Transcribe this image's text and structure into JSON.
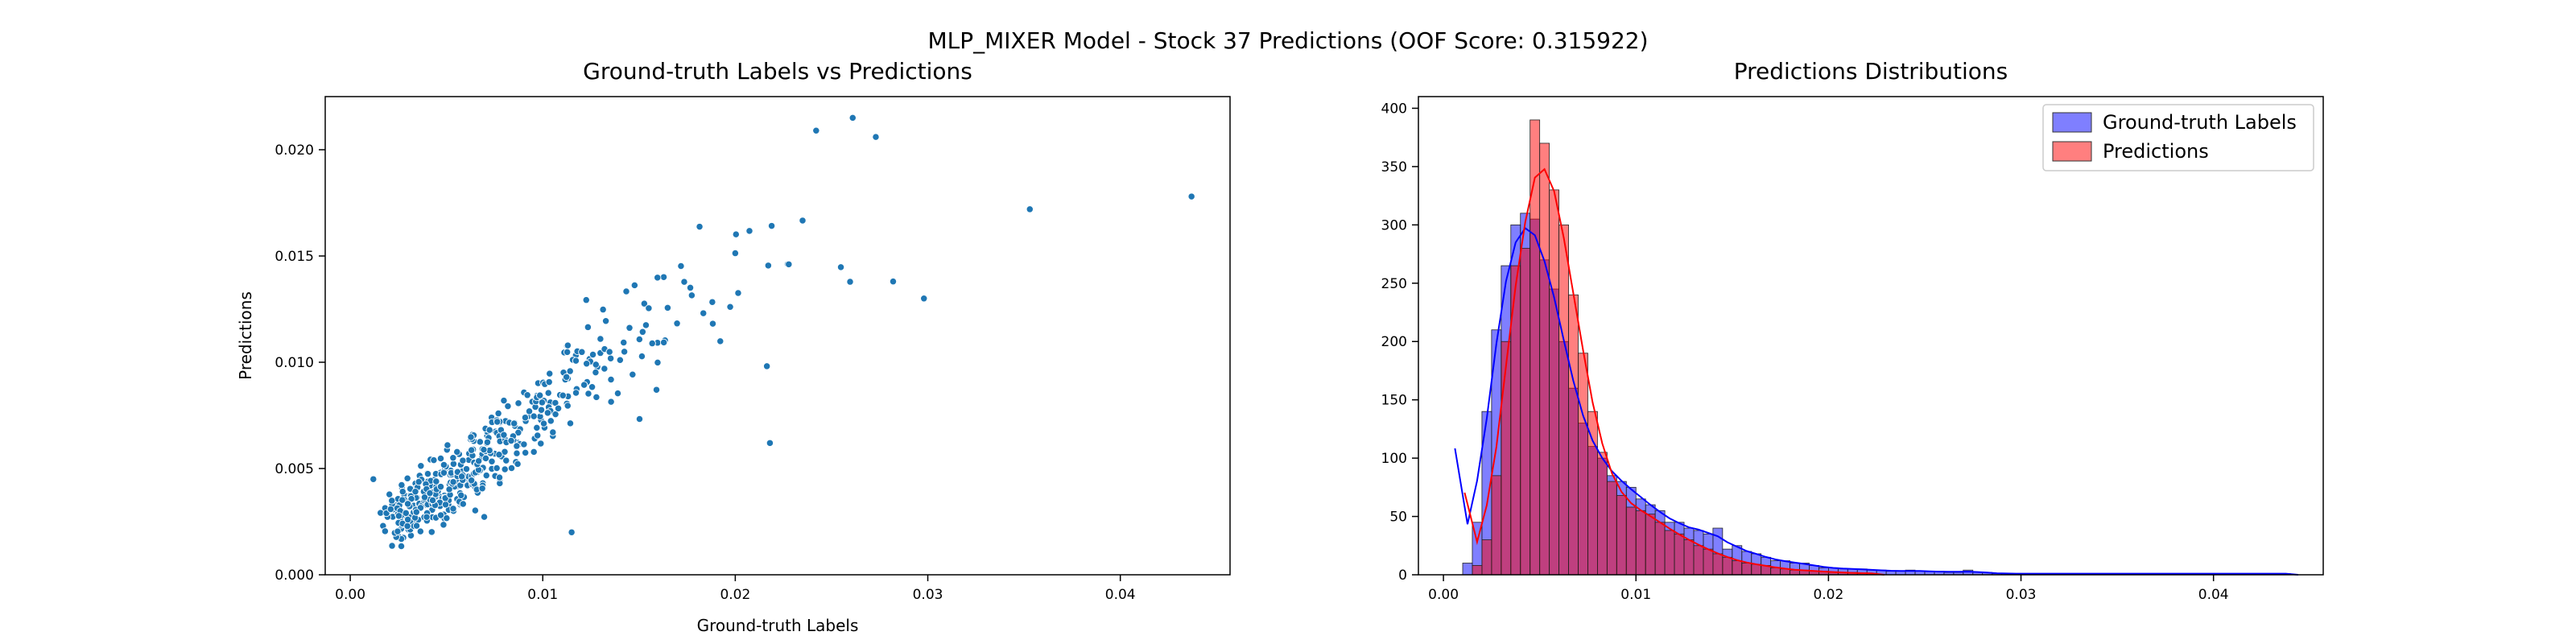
{
  "figure": {
    "title": "MLP_MIXER Model - Stock 37 Predictions (OOF Score: 0.315922)"
  },
  "chart_data": [
    {
      "type": "scatter",
      "title": "Ground-truth Labels vs Predictions",
      "xlabel": "Ground-truth Labels",
      "ylabel": "Predictions",
      "xlim": [
        -0.0013,
        0.0457
      ],
      "ylim": [
        0,
        0.0225
      ],
      "xticks": [
        "0.00",
        "0.01",
        "0.02",
        "0.03",
        "0.04"
      ],
      "yticks": [
        "0.000",
        "0.005",
        "0.010",
        "0.015",
        "0.020"
      ],
      "grid": false,
      "point_color": "#1f77b4",
      "notable_points": [
        {
          "x": 0.0437,
          "y": 0.0178
        },
        {
          "x": 0.0353,
          "y": 0.0172
        },
        {
          "x": 0.0261,
          "y": 0.0215
        },
        {
          "x": 0.0242,
          "y": 0.0209
        },
        {
          "x": 0.0273,
          "y": 0.0206
        },
        {
          "x": 0.0298,
          "y": 0.013
        },
        {
          "x": 0.0282,
          "y": 0.0138
        },
        {
          "x": 0.0218,
          "y": 0.0062
        },
        {
          "x": 0.0115,
          "y": 0.002
        },
        {
          "x": 0.0012,
          "y": 0.0045
        }
      ],
      "point_cloud": [
        {
          "x": 0.0025,
          "y": 0.0028,
          "n": 60
        },
        {
          "x": 0.0035,
          "y": 0.0033,
          "n": 60
        },
        {
          "x": 0.0045,
          "y": 0.0038,
          "n": 55
        },
        {
          "x": 0.0055,
          "y": 0.0045,
          "n": 50
        },
        {
          "x": 0.0065,
          "y": 0.0052,
          "n": 45
        },
        {
          "x": 0.0075,
          "y": 0.0058,
          "n": 40
        },
        {
          "x": 0.0085,
          "y": 0.0066,
          "n": 32
        },
        {
          "x": 0.0095,
          "y": 0.0074,
          "n": 28
        },
        {
          "x": 0.0105,
          "y": 0.0082,
          "n": 22
        },
        {
          "x": 0.0115,
          "y": 0.009,
          "n": 18
        },
        {
          "x": 0.0125,
          "y": 0.0096,
          "n": 14
        },
        {
          "x": 0.0135,
          "y": 0.0102,
          "n": 11
        },
        {
          "x": 0.0145,
          "y": 0.0108,
          "n": 9
        },
        {
          "x": 0.0155,
          "y": 0.0114,
          "n": 8
        },
        {
          "x": 0.0165,
          "y": 0.0118,
          "n": 6
        },
        {
          "x": 0.0175,
          "y": 0.0123,
          "n": 5
        },
        {
          "x": 0.0185,
          "y": 0.0128,
          "n": 4
        },
        {
          "x": 0.0195,
          "y": 0.0132,
          "n": 3
        },
        {
          "x": 0.0205,
          "y": 0.0138,
          "n": 3
        },
        {
          "x": 0.0215,
          "y": 0.0142,
          "n": 2
        },
        {
          "x": 0.0225,
          "y": 0.0145,
          "n": 2
        },
        {
          "x": 0.0235,
          "y": 0.0148,
          "n": 2
        },
        {
          "x": 0.0255,
          "y": 0.0152,
          "n": 2
        }
      ]
    },
    {
      "type": "histogram",
      "title": "Predictions Distributions",
      "xlim": [
        -0.0013,
        0.0457
      ],
      "ylim": [
        0,
        410
      ],
      "xticks": [
        "0.00",
        "0.01",
        "0.02",
        "0.03",
        "0.04"
      ],
      "yticks": [
        "0",
        "50",
        "100",
        "150",
        "200",
        "250",
        "300",
        "350",
        "400"
      ],
      "legend": "top-right",
      "bin_width": 0.0005,
      "series": [
        {
          "name": "Ground-truth Labels",
          "color": "#0000ff",
          "bin_start": 0.001,
          "counts": [
            10,
            45,
            140,
            210,
            265,
            300,
            310,
            305,
            270,
            245,
            200,
            160,
            130,
            110,
            100,
            85,
            80,
            75,
            65,
            60,
            55,
            45,
            45,
            40,
            38,
            35,
            40,
            22,
            25,
            20,
            18,
            15,
            12,
            12,
            10,
            10,
            8,
            6,
            6,
            5,
            5,
            5,
            4,
            4,
            3,
            3,
            4,
            3,
            3,
            3,
            2,
            2,
            4,
            2,
            2,
            1,
            1,
            1,
            1,
            1,
            1,
            1,
            1,
            1,
            1,
            1,
            1,
            1,
            1,
            1,
            1,
            1,
            1,
            1,
            1,
            1,
            1,
            1,
            1,
            1,
            1,
            1,
            1,
            1,
            1,
            1
          ]
        },
        {
          "name": "Predictions",
          "color": "#ff0000",
          "bin_start": 0.0015,
          "counts": [
            8,
            30,
            85,
            200,
            265,
            280,
            390,
            370,
            330,
            300,
            240,
            190,
            140,
            105,
            80,
            68,
            58,
            55,
            52,
            45,
            38,
            35,
            30,
            25,
            22,
            18,
            15,
            12,
            10,
            9,
            8,
            6,
            5,
            4,
            4,
            3,
            3,
            2,
            2,
            2,
            1,
            1
          ]
        }
      ]
    }
  ]
}
